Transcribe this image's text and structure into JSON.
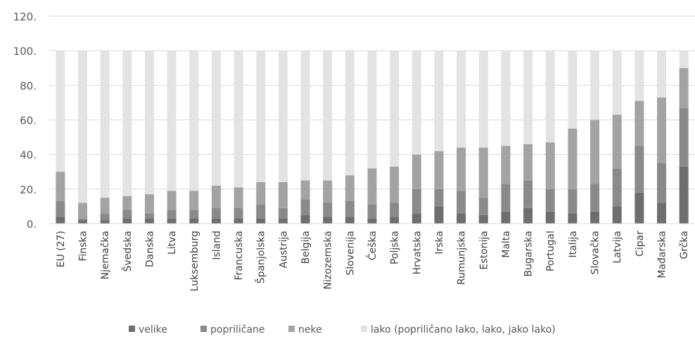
{
  "chart_data": {
    "type": "bar",
    "stacked": true,
    "categories": [
      "EU (27)",
      "Finska",
      "Njemačka",
      "Švedska",
      "Danska",
      "Litva",
      "Luksemburg",
      "Island",
      "Francuska",
      "Španjolska",
      "Austrija",
      "Belgija",
      "Nizozemska",
      "Slovenija",
      "Češka",
      "Poljska",
      "Hrvatska",
      "Irska",
      "Rumunjska",
      "Estonija",
      "Malta",
      "Bugarska",
      "Portugal",
      "Italija",
      "Slovačka",
      "Latvija",
      "Cipar",
      "Mađarska",
      "Grčka"
    ],
    "series": [
      {
        "name": "velike",
        "color": "#6e6e6e",
        "values": [
          4,
          2,
          2,
          3,
          3,
          3,
          3,
          3,
          3,
          3,
          3,
          5,
          4,
          4,
          3,
          4,
          6,
          10,
          6,
          5,
          7,
          9,
          7,
          6,
          7,
          10,
          18,
          12,
          33
        ]
      },
      {
        "name": "popriličane",
        "label": "popriličane",
        "color": "#8a8a8a",
        "values": [
          9,
          1,
          4,
          5,
          3,
          5,
          5,
          6,
          6,
          8,
          6,
          9,
          8,
          9,
          8,
          8,
          14,
          10,
          13,
          10,
          16,
          16,
          13,
          14,
          16,
          22,
          27,
          23,
          34
        ]
      },
      {
        "name": "neke",
        "color": "#a3a3a3",
        "values": [
          17,
          9,
          9,
          8,
          11,
          11,
          11,
          13,
          12,
          13,
          15,
          11,
          13,
          15,
          21,
          21,
          20,
          22,
          25,
          29,
          22,
          21,
          27,
          35,
          37,
          31,
          26,
          38,
          23
        ]
      },
      {
        "name": "lako (popriličano lako, lako, jako lako)",
        "color": "#e3e3e3",
        "values": [
          70,
          88,
          85,
          84,
          83,
          81,
          81,
          78,
          79,
          76,
          76,
          75,
          75,
          72,
          68,
          67,
          60,
          58,
          56,
          56,
          55,
          54,
          53,
          45,
          40,
          37,
          29,
          27,
          10
        ]
      }
    ],
    "legend": [
      "velike",
      "popriličane",
      "neke",
      "lako (popriličano lako, lako, jako lako)"
    ],
    "legend_position": "bottom",
    "yticks": [
      "0.",
      "20.",
      "40.",
      "60.",
      "80.",
      "100.",
      "120."
    ],
    "ylim": [
      0,
      120
    ],
    "grid": true,
    "title": "",
    "xlabel": "",
    "ylabel": ""
  }
}
